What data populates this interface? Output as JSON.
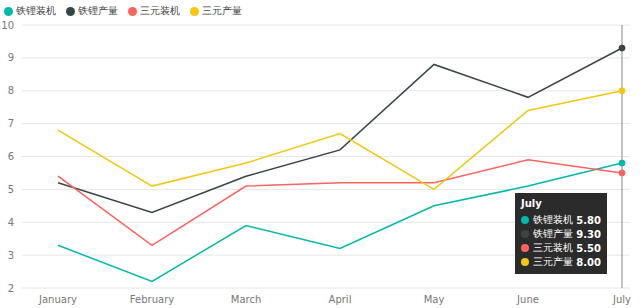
{
  "chart_data": {
    "type": "line",
    "categories": [
      "January",
      "February",
      "March",
      "April",
      "May",
      "June",
      "July"
    ],
    "series": [
      {
        "name": "铁锂装机",
        "color": "#01b8aa",
        "values": [
          3.3,
          2.2,
          3.9,
          3.2,
          4.5,
          5.1,
          5.8
        ]
      },
      {
        "name": "铁锂产量",
        "color": "#374649",
        "values": [
          5.2,
          4.3,
          5.4,
          6.2,
          8.8,
          7.8,
          9.3
        ]
      },
      {
        "name": "三元装机",
        "color": "#fd625e",
        "values": [
          5.4,
          3.3,
          5.1,
          5.2,
          5.2,
          5.9,
          5.5
        ]
      },
      {
        "name": "三元产量",
        "color": "#f2c80f",
        "values": [
          6.8,
          5.1,
          5.8,
          6.7,
          5.0,
          7.4,
          8.0
        ]
      }
    ],
    "ylim": [
      2,
      10
    ],
    "yticks": [
      2,
      3,
      4,
      5,
      6,
      7,
      8,
      9,
      10
    ],
    "grid": true,
    "legend": "top-left",
    "annotation": {
      "title": "July",
      "labels": [
        "5.80",
        "9.30",
        "5.50",
        "8.00"
      ]
    }
  }
}
